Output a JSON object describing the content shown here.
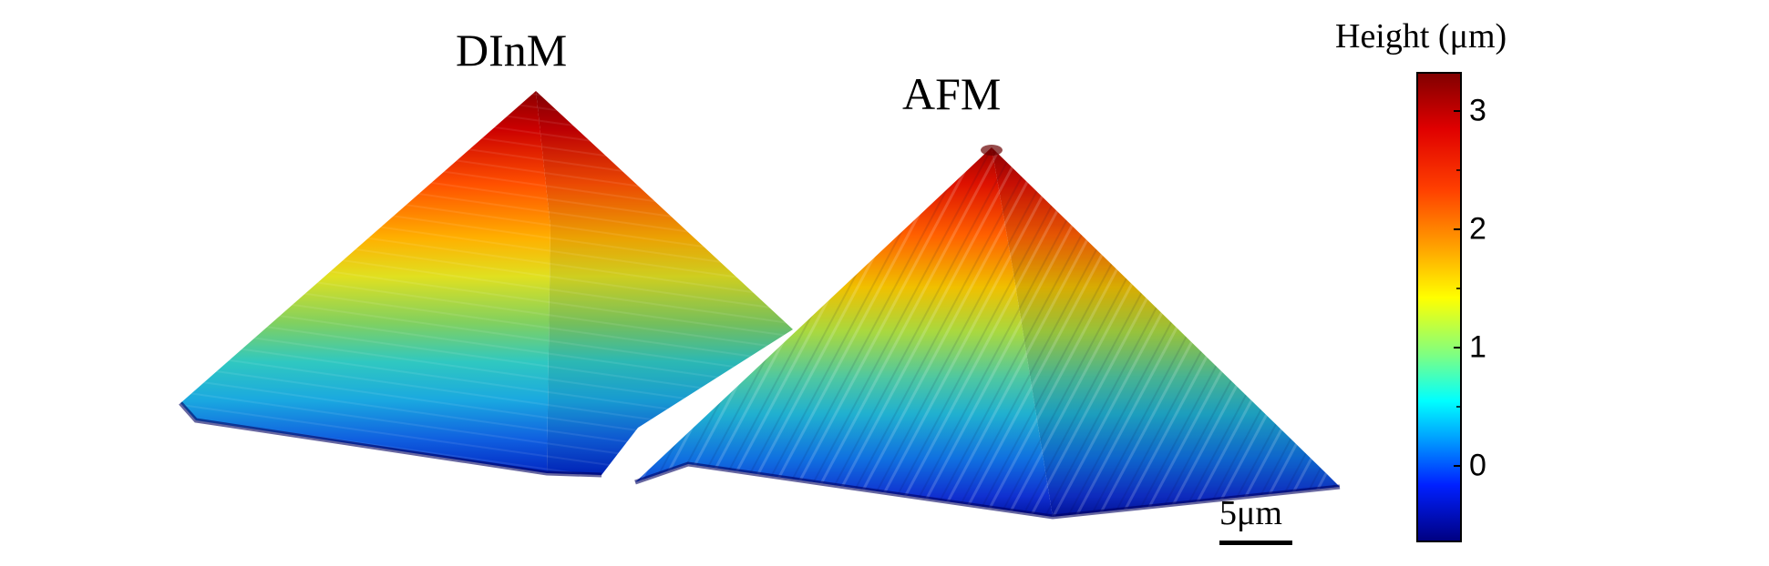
{
  "labels": {
    "left": "DInM",
    "right": "AFM",
    "colorbar_title": "Height (μm)",
    "scale_bar": "5μm"
  },
  "colorbar": {
    "ticks": [
      "3",
      "2",
      "1",
      "0"
    ]
  }
}
